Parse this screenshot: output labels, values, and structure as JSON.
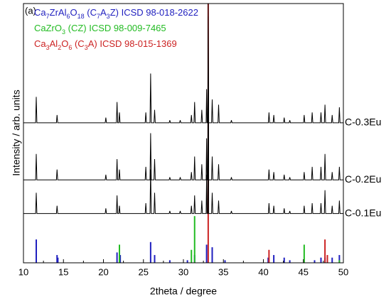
{
  "chart_data": {
    "type": "line",
    "panel_label": "(a)",
    "x_label": "2theta / degree",
    "y_label": "Intensity / arb. units",
    "xlim": [
      10,
      50
    ],
    "xticks": [
      10,
      15,
      20,
      25,
      30,
      35,
      40,
      45,
      50
    ],
    "ylim": [
      0,
      100
    ],
    "x": [
      10,
      11.52,
      11.6,
      11.68,
      14.12,
      14.2,
      14.28,
      20.22,
      20.3,
      20.38,
      21.62,
      21.7,
      21.78,
      21.92,
      22.0,
      22.08,
      25.22,
      25.3,
      25.38,
      25.82,
      25.9,
      25.98,
      26.32,
      26.4,
      26.48,
      28.22,
      28.3,
      28.38,
      29.52,
      29.6,
      29.68,
      30.92,
      31.0,
      31.08,
      31.32,
      31.4,
      31.48,
      32.22,
      32.3,
      32.38,
      32.84,
      32.9,
      32.96,
      33.04,
      33.1,
      33.16,
      33.52,
      33.6,
      33.68,
      34.32,
      34.4,
      34.48,
      35.92,
      36.0,
      36.08,
      40.62,
      40.7,
      40.78,
      41.22,
      41.3,
      41.38,
      42.52,
      42.6,
      42.68,
      43.22,
      43.3,
      43.38,
      45.02,
      45.1,
      45.18,
      46.02,
      46.1,
      46.18,
      47.12,
      47.2,
      47.28,
      47.62,
      47.7,
      47.78,
      48.52,
      48.6,
      48.68,
      49.42,
      49.5,
      49.58,
      50
    ],
    "series": [
      {
        "name": "C-0.3Eu",
        "color": "#000000",
        "values": [
          54,
          54,
          64,
          54,
          54,
          57,
          54,
          54,
          56,
          54,
          54,
          62,
          54,
          54,
          58,
          54,
          54,
          58,
          54,
          54,
          73,
          54,
          54,
          59,
          54,
          54,
          55,
          54,
          54,
          55,
          54,
          54,
          57,
          54,
          54,
          62,
          54,
          54,
          59,
          54,
          54,
          67,
          54,
          54,
          100,
          54,
          54,
          63,
          54,
          54,
          61,
          54,
          54,
          55,
          54,
          54,
          58,
          54,
          54,
          57,
          54,
          54,
          56,
          54,
          54,
          55,
          54,
          54,
          57,
          54,
          54,
          58,
          54,
          54,
          58,
          54,
          54,
          61,
          54,
          54,
          57,
          54,
          54,
          60,
          54,
          54
        ]
      },
      {
        "name": "C-0.2Eu",
        "color": "#000000",
        "values": [
          32,
          32,
          42,
          32,
          32,
          36,
          32,
          32,
          34,
          32,
          32,
          40,
          32,
          32,
          36,
          32,
          32,
          37,
          32,
          32,
          50,
          32,
          32,
          40,
          32,
          32,
          33,
          32,
          32,
          33,
          32,
          32,
          35,
          32,
          32,
          41,
          32,
          32,
          38,
          32,
          32,
          48,
          32,
          32,
          95,
          32,
          32,
          41,
          32,
          32,
          38,
          32,
          32,
          33,
          32,
          32,
          36,
          32,
          32,
          35,
          32,
          32,
          34,
          32,
          32,
          33,
          32,
          32,
          35,
          32,
          32,
          37,
          32,
          32,
          37,
          32,
          32,
          42,
          32,
          32,
          35,
          32,
          32,
          37,
          32,
          32
        ]
      },
      {
        "name": "C-0.1Eu",
        "color": "#000000",
        "values": [
          19,
          19,
          27,
          19,
          19,
          22,
          19,
          19,
          21,
          19,
          19,
          26,
          19,
          19,
          22,
          19,
          19,
          23,
          19,
          19,
          36,
          19,
          19,
          27,
          19,
          19,
          20,
          19,
          19,
          20,
          19,
          19,
          22,
          19,
          19,
          26,
          19,
          19,
          24,
          19,
          19,
          34,
          19,
          19,
          90,
          19,
          19,
          27,
          19,
          19,
          24,
          19,
          19,
          20,
          19,
          19,
          23,
          19,
          19,
          22,
          19,
          19,
          21,
          19,
          19,
          20,
          19,
          19,
          22,
          19,
          19,
          23,
          19,
          19,
          23,
          19,
          19,
          28,
          19,
          19,
          22,
          19,
          19,
          24,
          19,
          19
        ]
      }
    ],
    "references": [
      {
        "name": "Ca7ZrAl6O18 (C7A3Z) ICSD 98-018-2622",
        "color": "#1f1fbf",
        "x": [
          11.6,
          14.2,
          14.3,
          21.7,
          22.1,
          25.9,
          26.4,
          28.3,
          30.5,
          31.4,
          32.9,
          33.6,
          35.2,
          40.6,
          41.3,
          42.6,
          43.3,
          46.4,
          47.2,
          47.7,
          48.6,
          49.5
        ],
        "values": [
          9,
          3,
          2,
          4,
          3,
          8,
          3,
          1,
          1,
          3,
          7,
          6,
          1,
          2,
          3,
          2,
          1,
          1,
          2,
          2,
          2,
          3
        ]
      },
      {
        "name": "CaZrO3 (CZ) ICSD 98-009-7465",
        "color": "#22bb22",
        "x": [
          22.0,
          31.0,
          31.4,
          45.1,
          49.5
        ],
        "values": [
          7,
          5,
          18,
          7,
          1
        ]
      },
      {
        "name": "Ca3Al2O6 (C3A) ICSD 98-015-1369",
        "color": "#cc2222",
        "x": [
          33.1,
          40.7,
          47.7,
          48.0
        ],
        "values": [
          100,
          5,
          9,
          3
        ]
      }
    ]
  }
}
